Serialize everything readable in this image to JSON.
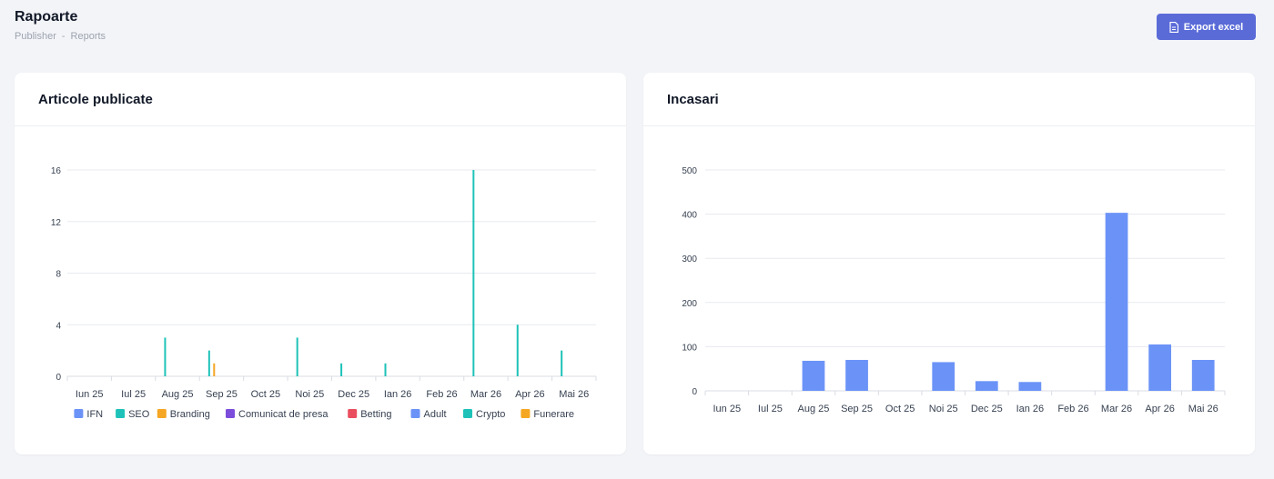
{
  "header": {
    "title": "Rapoarte",
    "breadcrumb": [
      "Publisher",
      "-",
      "Reports"
    ],
    "export_label": "Export excel"
  },
  "months": [
    "Iun 25",
    "Iul 25",
    "Aug 25",
    "Sep 25",
    "Oct 25",
    "Noi 25",
    "Dec 25",
    "Ian 26",
    "Feb 26",
    "Mar 26",
    "Apr 26",
    "Mai 26"
  ],
  "cards": {
    "articles": {
      "title": "Articole publicate"
    },
    "income": {
      "title": "Incasari"
    }
  },
  "chart_data": [
    {
      "type": "bar",
      "title": "Articole publicate",
      "categories": [
        "Iun 25",
        "Iul 25",
        "Aug 25",
        "Sep 25",
        "Oct 25",
        "Noi 25",
        "Dec 25",
        "Ian 26",
        "Feb 26",
        "Mar 26",
        "Apr 26",
        "Mai 26"
      ],
      "ylim": [
        0,
        16
      ],
      "yticks": [
        0,
        4,
        8,
        12,
        16
      ],
      "grid": true,
      "legend_position": "bottom",
      "series": [
        {
          "name": "IFN",
          "color": "#6b93f7",
          "values": [
            0,
            0,
            0,
            0,
            0,
            0,
            0,
            0,
            0,
            0,
            0,
            0
          ]
        },
        {
          "name": "SEO",
          "color": "#1ec2b8",
          "values": [
            0,
            0,
            3,
            2,
            0,
            3,
            1,
            1,
            0,
            16,
            4,
            2
          ]
        },
        {
          "name": "Branding",
          "color": "#f5a623",
          "values": [
            0,
            0,
            0,
            1,
            0,
            0,
            0,
            0,
            0,
            0,
            0,
            0
          ]
        },
        {
          "name": "Comunicat de presa",
          "color": "#7c4ddb",
          "values": [
            0,
            0,
            0,
            0,
            0,
            0,
            0,
            0,
            0,
            0,
            0,
            0
          ]
        },
        {
          "name": "Betting",
          "color": "#ea4f5f",
          "values": [
            0,
            0,
            0,
            0,
            0,
            0,
            0,
            0,
            0,
            0,
            0,
            0
          ]
        },
        {
          "name": "Adult",
          "color": "#6b93f7",
          "values": [
            0,
            0,
            0,
            0,
            0,
            0,
            0,
            0,
            0,
            0,
            0,
            0
          ]
        },
        {
          "name": "Crypto",
          "color": "#1ec2b8",
          "values": [
            0,
            0,
            0,
            0,
            0,
            0,
            0,
            0,
            0,
            0,
            0,
            0
          ]
        },
        {
          "name": "Funerare",
          "color": "#f5a623",
          "values": [
            0,
            0,
            0,
            0,
            0,
            0,
            0,
            0,
            0,
            0,
            0,
            0
          ]
        }
      ]
    },
    {
      "type": "bar",
      "title": "Incasari",
      "categories": [
        "Iun 25",
        "Iul 25",
        "Aug 25",
        "Sep 25",
        "Oct 25",
        "Noi 25",
        "Dec 25",
        "Ian 26",
        "Feb 26",
        "Mar 26",
        "Apr 26",
        "Mai 26"
      ],
      "ylim": [
        0,
        500
      ],
      "yticks": [
        0,
        100,
        200,
        300,
        400,
        500
      ],
      "grid": true,
      "color": "#6b93f7",
      "values": [
        0,
        0,
        68,
        70,
        0,
        65,
        22,
        20,
        0,
        403,
        105,
        70
      ]
    }
  ]
}
